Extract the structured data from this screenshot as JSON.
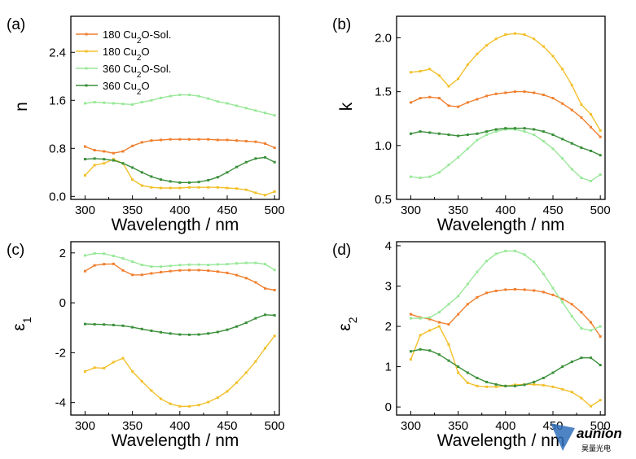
{
  "colors": {
    "orange": "#f07f2e",
    "yellow": "#f2c02a",
    "light_green": "#99e899",
    "dark_green": "#3a8f3a",
    "axis": "#000000"
  },
  "watermark": {
    "text": "aunion",
    "subtext": "昊量光电",
    "icon": "triangle-logo-icon",
    "color": "#2f6fb8"
  },
  "legend": {
    "placement": "top-left of panel (a)",
    "entries": [
      {
        "label_main": "180 Cu",
        "label_sub": "2",
        "label_tail": "O-Sol.",
        "color": "orange"
      },
      {
        "label_main": "180 Cu",
        "label_sub": "2",
        "label_tail": "O",
        "color": "yellow"
      },
      {
        "label_main": "360 Cu",
        "label_sub": "2",
        "label_tail": "O-Sol.",
        "color": "light_green"
      },
      {
        "label_main": "360 Cu",
        "label_sub": "2",
        "label_tail": "O",
        "color": "dark_green"
      }
    ]
  },
  "chart_data": [
    {
      "panel_label": "(a)",
      "type": "line",
      "xlabel": "Wavelength / nm",
      "ylabel": "n",
      "ylabel_sub": "",
      "xlim": [
        285,
        505
      ],
      "ylim": [
        -0.05,
        3.0
      ],
      "xticks": [
        300,
        350,
        400,
        450,
        500
      ],
      "yticks": [
        0.0,
        0.8,
        1.6,
        2.4
      ],
      "ytick_labels": [
        "0.0",
        "0.8",
        "1.6",
        "2.4"
      ],
      "x": [
        300,
        310,
        320,
        330,
        340,
        350,
        360,
        370,
        380,
        390,
        400,
        410,
        420,
        430,
        440,
        450,
        460,
        470,
        480,
        490,
        500
      ],
      "series": [
        {
          "name": "180 Cu2O-Sol.",
          "color": "orange",
          "values": [
            0.83,
            0.77,
            0.75,
            0.72,
            0.75,
            0.84,
            0.9,
            0.93,
            0.94,
            0.95,
            0.95,
            0.95,
            0.95,
            0.95,
            0.94,
            0.94,
            0.93,
            0.92,
            0.91,
            0.88,
            0.81
          ]
        },
        {
          "name": "180 Cu2O",
          "color": "yellow",
          "values": [
            0.35,
            0.52,
            0.55,
            0.62,
            0.55,
            0.28,
            0.18,
            0.15,
            0.14,
            0.14,
            0.14,
            0.15,
            0.15,
            0.15,
            0.15,
            0.14,
            0.13,
            0.11,
            0.06,
            0.02,
            0.08
          ]
        },
        {
          "name": "360 Cu2O-Sol.",
          "color": "light_green",
          "values": [
            1.55,
            1.57,
            1.56,
            1.55,
            1.54,
            1.53,
            1.57,
            1.6,
            1.64,
            1.67,
            1.69,
            1.69,
            1.67,
            1.63,
            1.58,
            1.55,
            1.51,
            1.47,
            1.43,
            1.39,
            1.35
          ]
        },
        {
          "name": "360 Cu2O",
          "color": "dark_green",
          "values": [
            0.62,
            0.63,
            0.62,
            0.6,
            0.55,
            0.48,
            0.4,
            0.33,
            0.28,
            0.25,
            0.23,
            0.23,
            0.24,
            0.27,
            0.32,
            0.4,
            0.49,
            0.57,
            0.63,
            0.65,
            0.57
          ]
        }
      ]
    },
    {
      "panel_label": "(b)",
      "type": "line",
      "xlabel": "Wavelength / nm",
      "ylabel": "k",
      "ylabel_sub": "",
      "xlim": [
        285,
        505
      ],
      "ylim": [
        0.5,
        2.2
      ],
      "xticks": [
        300,
        350,
        400,
        450,
        500
      ],
      "yticks": [
        0.5,
        1.0,
        1.5,
        2.0
      ],
      "ytick_labels": [
        "0.5",
        "1.0",
        "1.5",
        "2.0"
      ],
      "x": [
        300,
        310,
        320,
        330,
        340,
        350,
        360,
        370,
        380,
        390,
        400,
        410,
        420,
        430,
        440,
        450,
        460,
        470,
        480,
        490,
        500
      ],
      "series": [
        {
          "name": "180 Cu2O-Sol.",
          "color": "orange",
          "values": [
            1.4,
            1.44,
            1.45,
            1.44,
            1.37,
            1.36,
            1.4,
            1.43,
            1.46,
            1.48,
            1.49,
            1.5,
            1.5,
            1.49,
            1.47,
            1.44,
            1.39,
            1.33,
            1.26,
            1.17,
            1.08
          ]
        },
        {
          "name": "180 Cu2O",
          "color": "yellow",
          "values": [
            1.68,
            1.69,
            1.71,
            1.65,
            1.55,
            1.62,
            1.75,
            1.85,
            1.93,
            1.99,
            2.03,
            2.04,
            2.03,
            1.99,
            1.92,
            1.83,
            1.71,
            1.56,
            1.38,
            1.29,
            1.14
          ]
        },
        {
          "name": "360 Cu2O-Sol.",
          "color": "light_green",
          "values": [
            0.71,
            0.7,
            0.71,
            0.75,
            0.82,
            0.89,
            0.97,
            1.05,
            1.1,
            1.13,
            1.15,
            1.15,
            1.13,
            1.1,
            1.04,
            0.97,
            0.88,
            0.78,
            0.7,
            0.67,
            0.73
          ]
        },
        {
          "name": "360 Cu2O",
          "color": "dark_green",
          "values": [
            1.11,
            1.13,
            1.12,
            1.11,
            1.1,
            1.09,
            1.1,
            1.11,
            1.13,
            1.15,
            1.16,
            1.16,
            1.16,
            1.15,
            1.13,
            1.1,
            1.06,
            1.02,
            0.98,
            0.95,
            0.91
          ]
        }
      ]
    },
    {
      "panel_label": "(c)",
      "type": "line",
      "xlabel": "Wavelength / nm",
      "ylabel": "ε",
      "ylabel_sub": "1",
      "xlim": [
        285,
        505
      ],
      "ylim": [
        -4.5,
        2.45
      ],
      "xticks": [
        300,
        350,
        400,
        450,
        500
      ],
      "yticks": [
        -4,
        -2,
        0,
        2
      ],
      "ytick_labels": [
        "-4",
        "-2",
        "0",
        "2"
      ],
      "x": [
        300,
        310,
        320,
        330,
        340,
        350,
        360,
        370,
        380,
        390,
        400,
        410,
        420,
        430,
        440,
        450,
        460,
        470,
        480,
        490,
        500
      ],
      "series": [
        {
          "name": "180 Cu2O-Sol.",
          "color": "orange",
          "values": [
            1.27,
            1.5,
            1.55,
            1.56,
            1.3,
            1.12,
            1.12,
            1.18,
            1.23,
            1.27,
            1.3,
            1.31,
            1.31,
            1.29,
            1.25,
            1.2,
            1.11,
            0.99,
            0.82,
            0.58,
            0.51
          ]
        },
        {
          "name": "180 Cu2O",
          "color": "yellow",
          "values": [
            -2.75,
            -2.6,
            -2.62,
            -2.38,
            -2.22,
            -2.75,
            -3.15,
            -3.52,
            -3.85,
            -4.05,
            -4.15,
            -4.15,
            -4.1,
            -3.98,
            -3.8,
            -3.55,
            -3.2,
            -2.8,
            -2.35,
            -1.82,
            -1.33
          ]
        },
        {
          "name": "360 Cu2O-Sol.",
          "color": "light_green",
          "values": [
            1.9,
            1.98,
            1.97,
            1.88,
            1.78,
            1.65,
            1.52,
            1.45,
            1.45,
            1.48,
            1.51,
            1.53,
            1.53,
            1.52,
            1.54,
            1.55,
            1.58,
            1.6,
            1.6,
            1.55,
            1.32
          ]
        },
        {
          "name": "360 Cu2O",
          "color": "dark_green",
          "values": [
            -0.85,
            -0.86,
            -0.87,
            -0.89,
            -0.92,
            -0.98,
            -1.05,
            -1.12,
            -1.18,
            -1.23,
            -1.27,
            -1.28,
            -1.27,
            -1.23,
            -1.17,
            -1.08,
            -0.95,
            -0.8,
            -0.62,
            -0.48,
            -0.5
          ]
        }
      ]
    },
    {
      "panel_label": "(d)",
      "type": "line",
      "xlabel": "Wavelength / nm",
      "ylabel": "ε",
      "ylabel_sub": "2",
      "xlim": [
        285,
        505
      ],
      "ylim": [
        -0.2,
        4.1
      ],
      "xticks": [
        300,
        350,
        400,
        450,
        500
      ],
      "yticks": [
        0,
        1,
        2,
        3,
        4
      ],
      "ytick_labels": [
        "0",
        "1",
        "2",
        "3",
        "4"
      ],
      "x": [
        300,
        310,
        320,
        330,
        340,
        350,
        360,
        370,
        380,
        390,
        400,
        410,
        420,
        430,
        440,
        450,
        460,
        470,
        480,
        490,
        500
      ],
      "series": [
        {
          "name": "180 Cu2O-Sol.",
          "color": "orange",
          "values": [
            2.3,
            2.22,
            2.18,
            2.1,
            2.05,
            2.3,
            2.55,
            2.72,
            2.83,
            2.88,
            2.91,
            2.92,
            2.91,
            2.89,
            2.85,
            2.78,
            2.68,
            2.55,
            2.35,
            2.1,
            1.75
          ]
        },
        {
          "name": "180 Cu2O",
          "color": "yellow",
          "values": [
            1.18,
            1.78,
            1.9,
            2.0,
            1.55,
            0.85,
            0.6,
            0.52,
            0.5,
            0.5,
            0.52,
            0.55,
            0.56,
            0.56,
            0.54,
            0.5,
            0.44,
            0.37,
            0.22,
            0.02,
            0.17
          ]
        },
        {
          "name": "360 Cu2O-Sol.",
          "color": "light_green",
          "values": [
            2.2,
            2.2,
            2.22,
            2.35,
            2.55,
            2.75,
            3.05,
            3.35,
            3.62,
            3.8,
            3.87,
            3.87,
            3.78,
            3.6,
            3.3,
            2.95,
            2.6,
            2.25,
            1.95,
            1.9,
            2.0
          ]
        },
        {
          "name": "360 Cu2O",
          "color": "dark_green",
          "values": [
            1.38,
            1.43,
            1.4,
            1.3,
            1.15,
            1.0,
            0.85,
            0.72,
            0.62,
            0.56,
            0.52,
            0.52,
            0.55,
            0.62,
            0.72,
            0.85,
            1.0,
            1.12,
            1.22,
            1.22,
            1.04
          ]
        }
      ]
    }
  ]
}
